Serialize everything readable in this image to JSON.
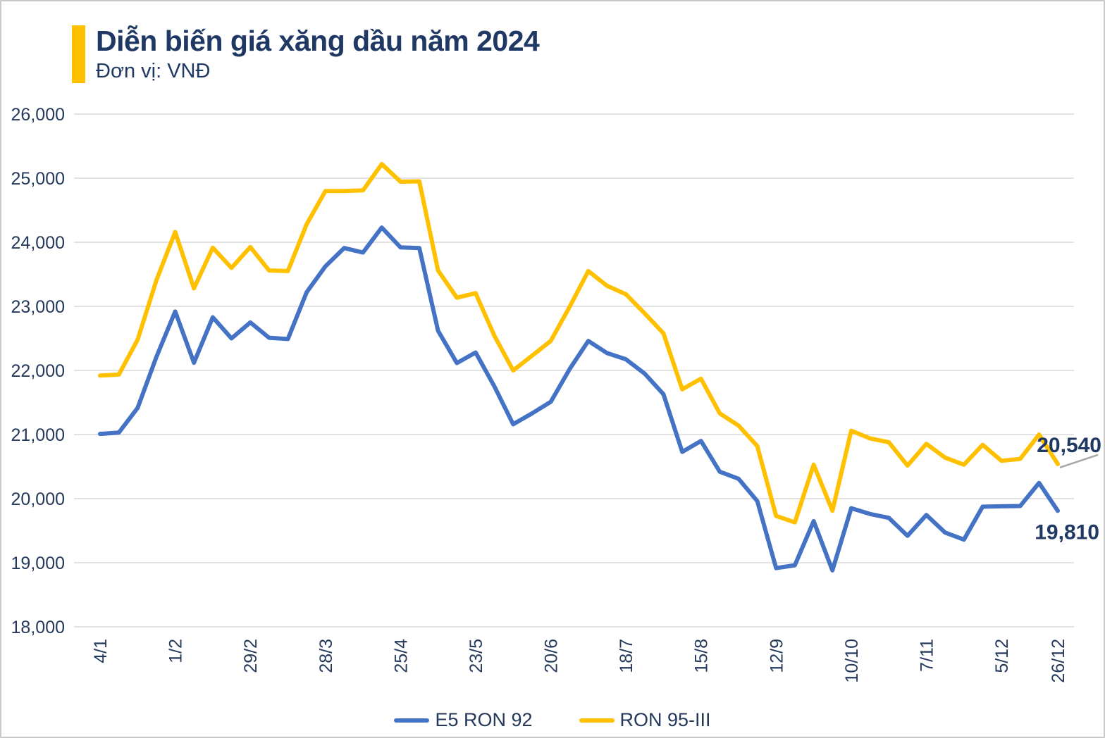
{
  "header": {
    "title": "Diễn biến giá xăng dầu năm 2024",
    "unit_label": "Đơn vị: VNĐ",
    "accent_color": "#FFC000",
    "title_color": "#1F3864"
  },
  "chart_data": {
    "type": "line",
    "title": "Diễn biến giá xăng dầu năm 2024",
    "unit": "VND",
    "grid": "horizontal",
    "legend_position": "bottom",
    "ylim": [
      18000,
      26000
    ],
    "y_ticks": [
      {
        "value": 18000,
        "label": "18,000"
      },
      {
        "value": 19000,
        "label": "19,000"
      },
      {
        "value": 20000,
        "label": "20,000"
      },
      {
        "value": 21000,
        "label": "21,000"
      },
      {
        "value": 22000,
        "label": "22,000"
      },
      {
        "value": 23000,
        "label": "23,000"
      },
      {
        "value": 24000,
        "label": "24,000"
      },
      {
        "value": 25000,
        "label": "25,000"
      },
      {
        "value": 26000,
        "label": "26,000"
      }
    ],
    "x": [
      "4/1",
      "11/1",
      "18/1",
      "25/1",
      "1/2",
      "8/2",
      "15/2",
      "22/2",
      "29/2",
      "7/3",
      "14/3",
      "21/3",
      "28/3",
      "4/4",
      "11/4",
      "18/4",
      "25/4",
      "2/5",
      "9/5",
      "16/5",
      "23/5",
      "30/5",
      "6/6",
      "13/6",
      "20/6",
      "27/6",
      "4/7",
      "11/7",
      "18/7",
      "25/7",
      "1/8",
      "8/8",
      "15/8",
      "22/8",
      "29/8",
      "5/9",
      "12/9",
      "19/9",
      "26/9",
      "3/10",
      "10/10",
      "17/10",
      "24/10",
      "31/10",
      "7/11",
      "14/11",
      "21/11",
      "28/11",
      "5/12",
      "12/12",
      "19/12",
      "26/12"
    ],
    "x_tick_labels": [
      {
        "index": 0,
        "label": "4/1"
      },
      {
        "index": 4,
        "label": "1/2"
      },
      {
        "index": 8,
        "label": "29/2"
      },
      {
        "index": 12,
        "label": "28/3"
      },
      {
        "index": 16,
        "label": "25/4"
      },
      {
        "index": 20,
        "label": "23/5"
      },
      {
        "index": 24,
        "label": "20/6"
      },
      {
        "index": 28,
        "label": "18/7"
      },
      {
        "index": 32,
        "label": "15/8"
      },
      {
        "index": 36,
        "label": "12/9"
      },
      {
        "index": 40,
        "label": "10/10"
      },
      {
        "index": 44,
        "label": "7/11"
      },
      {
        "index": 48,
        "label": "5/12"
      },
      {
        "index": 51,
        "label": "26/12"
      }
    ],
    "series": [
      {
        "name": "E5 RON 92",
        "color": "#4472C4",
        "end_label": "19,810",
        "values": [
          21010,
          21030,
          21415,
          22210,
          22920,
          22120,
          22830,
          22500,
          22750,
          22510,
          22490,
          23220,
          23625,
          23910,
          23840,
          24230,
          23920,
          23910,
          22620,
          22115,
          22280,
          21750,
          21160,
          21330,
          21510,
          22020,
          22460,
          22270,
          22175,
          21950,
          21630,
          20730,
          20900,
          20420,
          20310,
          19960,
          18915,
          18960,
          19650,
          18880,
          19850,
          19760,
          19700,
          19420,
          19745,
          19470,
          19360,
          19875,
          19880,
          19885,
          20245,
          19810
        ]
      },
      {
        "name": "RON 95-III",
        "color": "#FFC000",
        "end_label": "20,540",
        "values": [
          21920,
          21935,
          22480,
          23405,
          24160,
          23280,
          23915,
          23600,
          23925,
          23560,
          23550,
          24280,
          24800,
          24800,
          24810,
          25220,
          24945,
          24950,
          23560,
          23135,
          23205,
          22540,
          22000,
          22230,
          22460,
          22990,
          23550,
          23320,
          23190,
          22890,
          22580,
          21705,
          21870,
          21330,
          21140,
          20820,
          19730,
          19630,
          20530,
          19810,
          21060,
          20940,
          20880,
          20515,
          20855,
          20640,
          20530,
          20840,
          20590,
          20620,
          21000,
          20540
        ]
      }
    ],
    "callout_line_color": "#A6A6A6",
    "grid_color": "#D9D9D9"
  }
}
